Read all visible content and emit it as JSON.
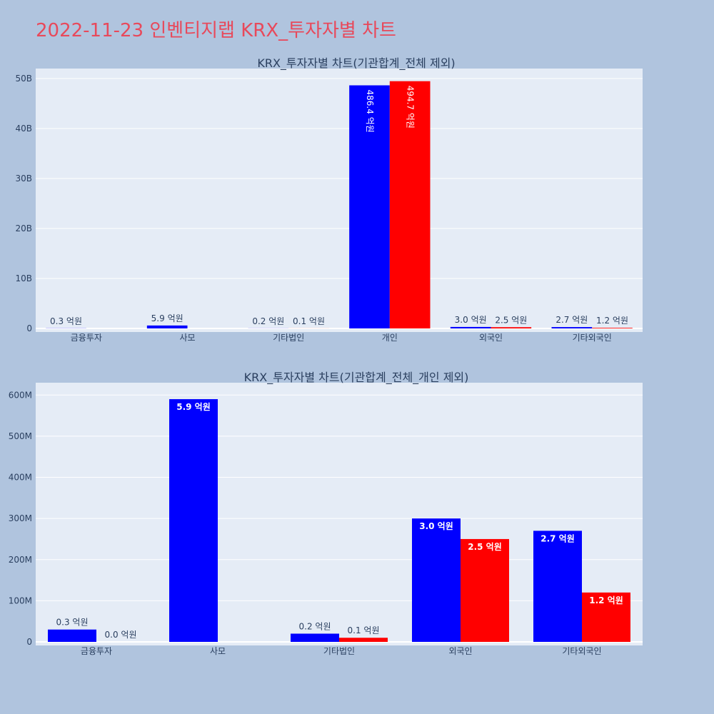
{
  "page": {
    "title": "2022-11-23 인벤티지랩 KRX_투자자별 차트"
  },
  "colors": {
    "background": "#b0c4de",
    "plot_bg": "#e5ecf6",
    "title": "#e8495b",
    "buy": "#0000ff",
    "sell": "#ff0000",
    "text": "#2a3f5f"
  },
  "chart_data": [
    {
      "type": "bar",
      "title": "KRX_투자자별 차트(기관합계_전체 제외)",
      "categories": [
        "금융투자",
        "사모",
        "기타법인",
        "개인",
        "외국인",
        "기타외국인"
      ],
      "series": [
        {
          "color": "#0000ff",
          "values": [
            30000000,
            590000000,
            20000000,
            48640000000,
            300000000,
            270000000
          ],
          "labels": [
            "0.3 억원",
            "5.9 억원",
            "0.2 억원",
            "486.4 억원",
            "3.0 억원",
            "2.7 억원"
          ]
        },
        {
          "color": "#ff0000",
          "values": [
            0,
            0,
            10000000,
            49470000000,
            250000000,
            120000000
          ],
          "labels": [
            "",
            "",
            "0.1 억원",
            "494.7 억원",
            "2.5 억원",
            "1.2 억원"
          ]
        }
      ],
      "ylim": [
        0,
        52000000000
      ],
      "yticks": [
        0,
        10000000000,
        20000000000,
        30000000000,
        40000000000,
        50000000000
      ],
      "yticklabels": [
        "0",
        "10B",
        "20B",
        "30B",
        "40B",
        "50B"
      ],
      "grid": true
    },
    {
      "type": "bar",
      "title": "KRX_투자자별 차트(기관합계_전체_개인 제외)",
      "categories": [
        "금융투자",
        "사모",
        "기타법인",
        "외국인",
        "기타외국인"
      ],
      "series": [
        {
          "color": "#0000ff",
          "values": [
            30000000,
            590000000,
            20000000,
            300000000,
            270000000
          ],
          "labels": [
            "0.3 억원",
            "5.9 억원",
            "0.2 억원",
            "3.0 억원",
            "2.7 억원"
          ]
        },
        {
          "color": "#ff0000",
          "values": [
            0,
            0,
            10000000,
            250000000,
            120000000
          ],
          "labels": [
            "0.0 억원",
            "",
            "0.1 억원",
            "2.5 억원",
            "1.2 억원"
          ]
        }
      ],
      "ylim": [
        0,
        630000000
      ],
      "yticks": [
        0,
        100000000,
        200000000,
        300000000,
        400000000,
        500000000,
        600000000
      ],
      "yticklabels": [
        "0",
        "100M",
        "200M",
        "300M",
        "400M",
        "500M",
        "600M"
      ],
      "grid": true
    }
  ]
}
